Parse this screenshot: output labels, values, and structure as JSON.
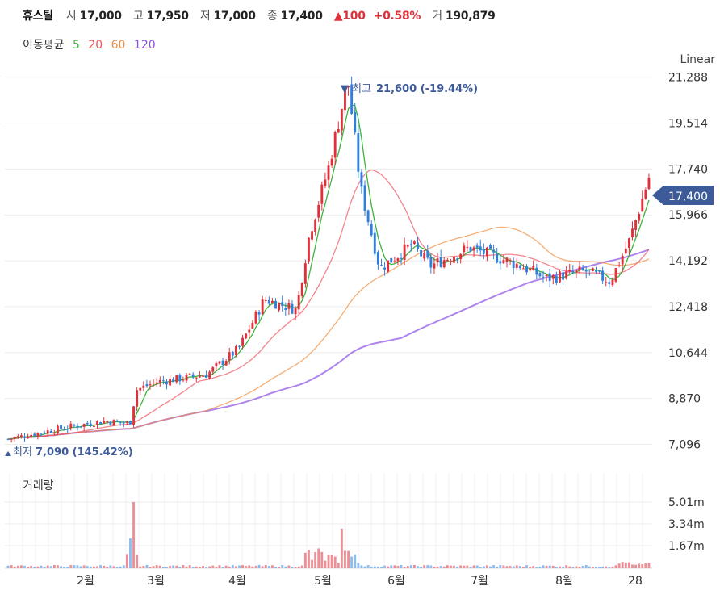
{
  "header": {
    "name": "휴스틸",
    "open_label": "시",
    "open": "17,000",
    "high_label": "고",
    "high": "17,950",
    "low_label": "저",
    "low": "17,000",
    "close_label": "종",
    "close": "17,400",
    "change": "▲100",
    "change_pct": "+0.58%",
    "volume_label": "거",
    "volume": "190,879"
  },
  "ma_legend": {
    "label": "이동평균",
    "items": [
      {
        "period": "5",
        "color": "#3cb43c"
      },
      {
        "period": "20",
        "color": "#f0505a"
      },
      {
        "period": "60",
        "color": "#f08c3c"
      },
      {
        "period": "120",
        "color": "#8c50e6"
      }
    ]
  },
  "scale_mode": "Linear",
  "volume_panel_label": "거래량",
  "annotations": {
    "high": {
      "label": "▼ 최고",
      "value": "21,600 (-19.44%)"
    },
    "low": {
      "label": "최저",
      "value": "7,090 (145.42%)"
    },
    "last_price_tag": "17,400"
  },
  "colors": {
    "up": "#e0313b",
    "down": "#2f7fe0",
    "tag": "#3d5a99"
  },
  "chart_data": {
    "type": "candlestick",
    "price_axis": {
      "ticks": [
        "21,288",
        "19,514",
        "17,740",
        "15,966",
        "14,192",
        "12,418",
        "10,644",
        "8,870",
        "7,096"
      ],
      "ylim": [
        6800,
        22400
      ]
    },
    "volume_axis": {
      "ticks": [
        "5.01m",
        "3.34m",
        "1.67m"
      ]
    },
    "x_ticks": [
      "2월",
      "3월",
      "4월",
      "5월",
      "6월",
      "7월",
      "8월",
      "28"
    ],
    "grid": true,
    "close_approx": [
      {
        "t": 0,
        "c": 7300
      },
      {
        "t": 0.08,
        "c": 7700
      },
      {
        "t": 0.15,
        "c": 8000
      },
      {
        "t": 0.19,
        "c": 7900
      },
      {
        "t": 0.2,
        "c": 9200
      },
      {
        "t": 0.23,
        "c": 9500
      },
      {
        "t": 0.31,
        "c": 9800
      },
      {
        "t": 0.36,
        "c": 10800
      },
      {
        "t": 0.4,
        "c": 12700
      },
      {
        "t": 0.45,
        "c": 12300
      },
      {
        "t": 0.47,
        "c": 15200
      },
      {
        "t": 0.5,
        "c": 17800
      },
      {
        "t": 0.53,
        "c": 21200
      },
      {
        "t": 0.55,
        "c": 17000
      },
      {
        "t": 0.58,
        "c": 13900
      },
      {
        "t": 0.63,
        "c": 14800
      },
      {
        "t": 0.66,
        "c": 14000
      },
      {
        "t": 0.72,
        "c": 14700
      },
      {
        "t": 0.8,
        "c": 14000
      },
      {
        "t": 0.84,
        "c": 13500
      },
      {
        "t": 0.9,
        "c": 13800
      },
      {
        "t": 0.94,
        "c": 13400
      },
      {
        "t": 0.97,
        "c": 15000
      },
      {
        "t": 1.0,
        "c": 17400
      }
    ],
    "volume_notes": "major spikes near 3월 (about 5.0m) and in early 5월 (about 3.0m); most other days low"
  }
}
